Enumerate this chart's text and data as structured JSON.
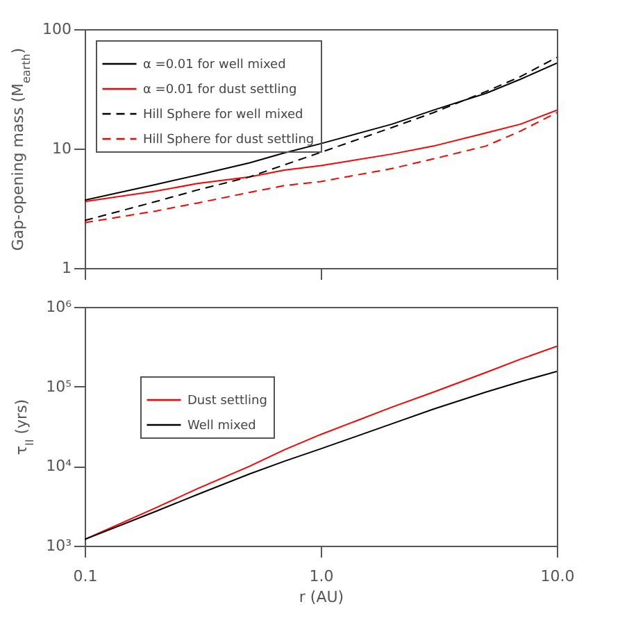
{
  "chart_data": [
    {
      "type": "line",
      "ylabel": "Gap-opening mass (M$_{earth}$)",
      "x": [
        0.1,
        0.2,
        0.3,
        0.5,
        0.7,
        1,
        2,
        3,
        5,
        7,
        10
      ],
      "series": [
        {
          "name": "α =0.01 for well mixed",
          "color": "#000000",
          "line_style": "solid",
          "values": [
            3.7,
            5.0,
            6.0,
            7.6,
            9.2,
            11,
            16,
            21,
            29,
            38,
            52
          ]
        },
        {
          "name": "α =0.01 for dust settling",
          "color": "#ff0000",
          "line_style": "solid",
          "values": [
            3.6,
            4.4,
            5.1,
            5.8,
            6.6,
            7.2,
            9.0,
            10.5,
            13.5,
            16,
            21
          ]
        },
        {
          "name": "Hill Sphere for well mixed",
          "color": "#000000",
          "line_style": "dashed",
          "values": [
            2.5,
            3.6,
            4.5,
            5.8,
            7.3,
            9.3,
            15,
            20,
            30,
            40,
            58
          ]
        },
        {
          "name": "Hill Sphere for dust settling",
          "color": "#ff0000",
          "line_style": "dashed",
          "values": [
            2.4,
            3.0,
            3.5,
            4.3,
            4.9,
            5.3,
            6.8,
            8.2,
            10.5,
            14,
            20
          ]
        }
      ],
      "log": "xy",
      "xlim": [
        0.1,
        10
      ],
      "xticks": [
        0.1,
        1,
        10
      ],
      "ylim": [
        1,
        100
      ],
      "yticks": [
        1,
        10,
        100
      ],
      "tick_labels": "y",
      "grid": false,
      "legend": "top left"
    },
    {
      "type": "line",
      "xlabel": "r (AU)",
      "ylabel": "τ$_{II}$ (yrs)",
      "x": [
        0.1,
        0.2,
        0.3,
        0.5,
        0.7,
        1,
        2,
        3,
        5,
        7,
        10
      ],
      "series": [
        {
          "name": "Dust settling",
          "color": "#ff0000",
          "line_style": "solid",
          "values": [
            1200,
            3000,
            5200,
            10000,
            16000,
            25000,
            55000,
            85000,
            150000,
            220000,
            320000
          ]
        },
        {
          "name": "Well mixed",
          "color": "#000000",
          "line_style": "solid",
          "values": [
            1200,
            2700,
            4400,
            8000,
            11500,
            16500,
            34000,
            52000,
            85000,
            115000,
            155000
          ]
        }
      ],
      "log": "xy",
      "xlim": [
        0.1,
        10
      ],
      "xticks": [
        {
          "value": 0.1,
          "label": "0.1"
        },
        {
          "value": 1,
          "label": "1.0"
        },
        {
          "value": 10,
          "label": "10.0"
        }
      ],
      "ylim": [
        1000,
        1000000
      ],
      "yticks": [
        {
          "value": 1000,
          "label": "10³"
        },
        {
          "value": 10000,
          "label": "10⁴"
        },
        {
          "value": 100000,
          "label": "10⁵"
        },
        {
          "value": 1000000,
          "label": "10⁶"
        }
      ],
      "grid": false,
      "legend": "left"
    }
  ]
}
